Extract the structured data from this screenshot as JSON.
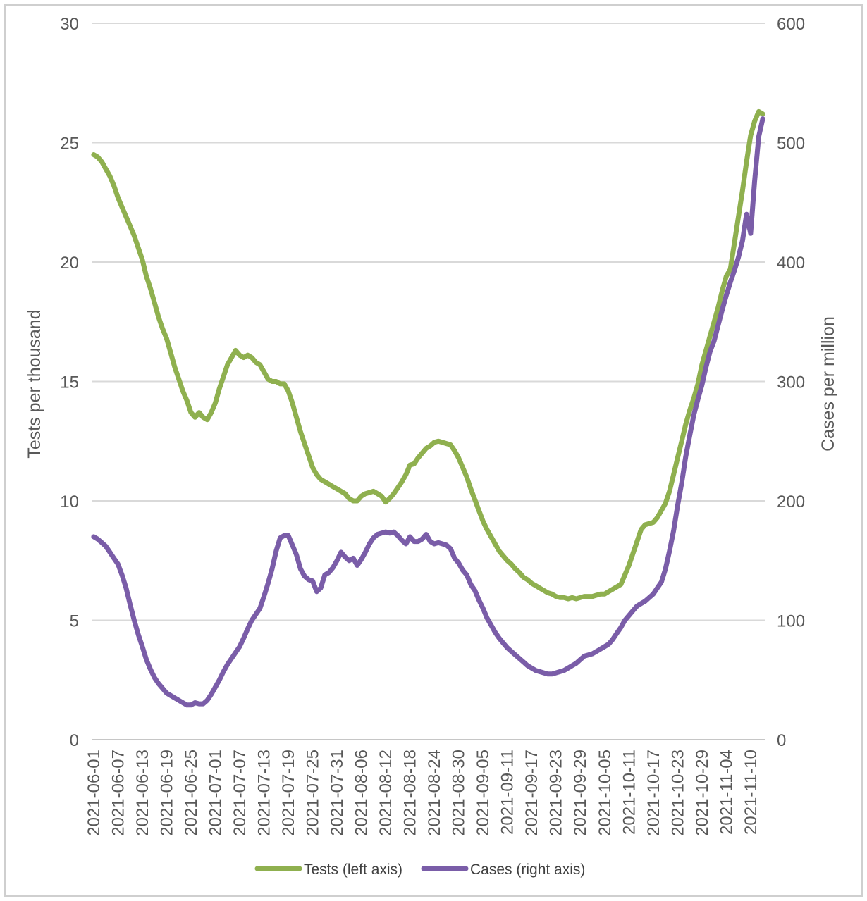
{
  "chart_data": {
    "type": "line",
    "title": "",
    "grid": "horizontal",
    "legend_position": "bottom-center",
    "colors": {
      "grid": "#d9d9d9",
      "axis_line": "#c6c6c6",
      "tick_text": "#595959",
      "tests_line": "#8fb04f",
      "cases_line": "#7a5da8"
    },
    "y_left": {
      "label": "Tests per thousand",
      "min": 0,
      "max": 30,
      "ticks": [
        0,
        5,
        10,
        15,
        20,
        25,
        30
      ]
    },
    "y_right": {
      "label": "Cases per million",
      "min": 0,
      "max": 600,
      "ticks": [
        0,
        100,
        200,
        300,
        400,
        500,
        600
      ]
    },
    "x_axis": {
      "start_date": "2021-06-01",
      "end_date": "2021-11-13",
      "tick_step_days": 6,
      "tick_labels": [
        "2021-06-01",
        "2021-06-07",
        "2021-06-13",
        "2021-06-19",
        "2021-06-25",
        "2021-07-01",
        "2021-07-07",
        "2021-07-13",
        "2021-07-19",
        "2021-07-25",
        "2021-07-31",
        "2021-08-06",
        "2021-08-12",
        "2021-08-18",
        "2021-08-24",
        "2021-08-30",
        "2021-09-05",
        "2021-09-11",
        "2021-09-17",
        "2021-09-23",
        "2021-09-29",
        "2021-10-05",
        "2021-10-11",
        "2021-10-17",
        "2021-10-23",
        "2021-10-29",
        "2021-11-04",
        "2021-11-10"
      ]
    },
    "series": [
      {
        "name": "Tests (left axis)",
        "axis": "left",
        "color": "#8fb04f",
        "values": [
          24.5,
          24.4,
          24.2,
          23.9,
          23.6,
          23.2,
          22.7,
          22.3,
          21.9,
          21.5,
          21.1,
          20.6,
          20.1,
          19.4,
          18.9,
          18.3,
          17.7,
          17.2,
          16.8,
          16.2,
          15.6,
          15.1,
          14.6,
          14.2,
          13.7,
          13.5,
          13.7,
          13.5,
          13.4,
          13.7,
          14.1,
          14.7,
          15.2,
          15.7,
          16.0,
          16.3,
          16.1,
          16.0,
          16.1,
          16.0,
          15.8,
          15.7,
          15.4,
          15.1,
          15.0,
          15.0,
          14.9,
          14.9,
          14.6,
          14.1,
          13.5,
          12.9,
          12.4,
          11.9,
          11.4,
          11.1,
          10.9,
          10.8,
          10.7,
          10.6,
          10.5,
          10.4,
          10.3,
          10.1,
          10.0,
          10.0,
          10.2,
          10.3,
          10.35,
          10.4,
          10.3,
          10.2,
          9.95,
          10.1,
          10.3,
          10.55,
          10.8,
          11.1,
          11.5,
          11.55,
          11.8,
          12.0,
          12.2,
          12.3,
          12.45,
          12.5,
          12.45,
          12.4,
          12.35,
          12.1,
          11.8,
          11.4,
          11.0,
          10.5,
          10.05,
          9.6,
          9.15,
          8.8,
          8.5,
          8.2,
          7.9,
          7.7,
          7.5,
          7.35,
          7.15,
          7.0,
          6.8,
          6.7,
          6.55,
          6.45,
          6.35,
          6.25,
          6.15,
          6.1,
          6.0,
          5.95,
          5.95,
          5.9,
          5.95,
          5.9,
          5.95,
          6.0,
          6.0,
          6.0,
          6.05,
          6.1,
          6.1,
          6.2,
          6.3,
          6.4,
          6.5,
          6.9,
          7.3,
          7.8,
          8.3,
          8.8,
          9.0,
          9.05,
          9.1,
          9.3,
          9.6,
          9.9,
          10.4,
          11.1,
          11.8,
          12.5,
          13.2,
          13.8,
          14.3,
          14.9,
          15.7,
          16.3,
          16.9,
          17.5,
          18.1,
          18.8,
          19.4,
          19.7,
          20.8,
          21.9,
          23.0,
          24.2,
          25.3,
          25.9,
          26.3,
          26.2
        ]
      },
      {
        "name": "Cases (right axis)",
        "axis": "right",
        "color": "#7a5da8",
        "values": [
          170,
          168,
          165,
          162,
          157,
          152,
          147,
          138,
          127,
          113,
          100,
          88,
          78,
          67,
          59,
          52,
          47,
          43,
          39,
          37,
          35,
          33,
          31,
          29,
          29,
          31,
          30,
          30,
          33,
          38,
          44,
          50,
          57,
          63,
          68,
          73,
          78,
          85,
          93,
          100,
          105,
          110,
          120,
          131,
          143,
          158,
          169,
          171,
          171,
          163,
          155,
          143,
          137,
          134,
          133,
          124,
          127,
          138,
          140,
          144,
          150,
          157,
          153,
          150,
          152,
          146,
          151,
          157,
          164,
          169,
          172,
          173,
          174,
          173,
          174,
          171,
          167,
          164,
          170,
          166,
          166,
          168,
          172,
          166,
          164,
          165,
          164,
          163,
          160,
          152,
          148,
          142,
          138,
          130,
          125,
          117,
          110,
          102,
          96,
          90,
          85,
          81,
          77,
          74,
          71,
          68,
          65,
          62,
          60,
          58,
          57,
          56,
          55,
          55,
          56,
          57,
          58,
          60,
          62,
          64,
          67,
          70,
          71,
          72,
          74,
          76,
          78,
          80,
          84,
          89,
          94,
          100,
          104,
          108,
          112,
          114,
          116,
          119,
          122,
          127,
          132,
          143,
          158,
          175,
          196,
          215,
          237,
          255,
          272,
          285,
          297,
          312,
          325,
          334,
          347,
          360,
          372,
          383,
          393,
          404,
          418,
          440,
          424,
          468,
          505,
          520
        ]
      }
    ]
  }
}
